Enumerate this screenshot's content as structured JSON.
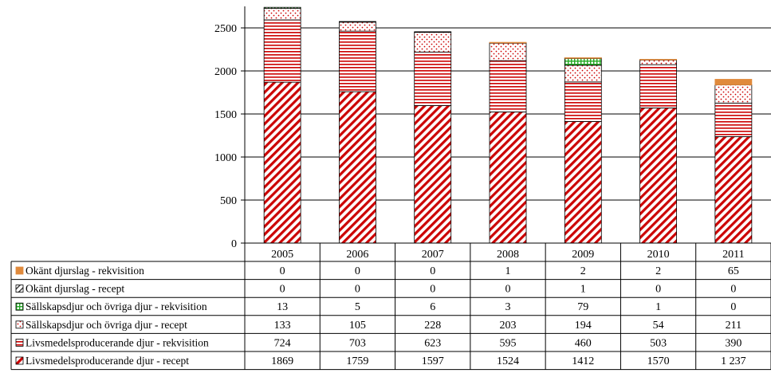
{
  "chart_data": {
    "type": "bar",
    "stacked": true,
    "title": "",
    "xlabel": "",
    "ylabel": "",
    "ylim": [
      0,
      2500
    ],
    "yticks": [
      "0",
      "500",
      "1000",
      "1500",
      "2000",
      "2500"
    ],
    "grid": "horizontal",
    "legend_placement": "data-table-left",
    "categories": [
      "2005",
      "2006",
      "2007",
      "2008",
      "2009",
      "2010",
      "2011"
    ],
    "series": [
      {
        "name": "Livsmedelsproducerande djur - recept",
        "color": "#cc0000",
        "pattern": "diagonal",
        "values": [
          1869,
          1759,
          1597,
          1524,
          1412,
          1570,
          1237
        ],
        "labels": [
          "1869",
          "1759",
          "1597",
          "1524",
          "1412",
          "1570",
          "1 237"
        ]
      },
      {
        "name": "Livsmedelsproducerande djur - rekvisition",
        "color": "#cc0000",
        "pattern": "horizontal",
        "values": [
          724,
          703,
          623,
          595,
          460,
          503,
          390
        ],
        "labels": [
          "724",
          "703",
          "623",
          "595",
          "460",
          "503",
          "390"
        ]
      },
      {
        "name": "Sällskapsdjur och övriga djur - recept",
        "color": "#cc0000",
        "pattern": "dots",
        "values": [
          133,
          105,
          228,
          203,
          194,
          54,
          211
        ],
        "labels": [
          "133",
          "105",
          "228",
          "203",
          "194",
          "54",
          "211"
        ]
      },
      {
        "name": "Sällskapsdjur och övriga djur - rekvisition",
        "color": "#22aa22",
        "pattern": "grid",
        "values": [
          13,
          5,
          6,
          3,
          79,
          1,
          0
        ],
        "labels": [
          "13",
          "5",
          "6",
          "3",
          "79",
          "1",
          "0"
        ]
      },
      {
        "name": "Okänt djurslag - recept",
        "color": "#333333",
        "pattern": "diagonal-dark",
        "values": [
          0,
          0,
          0,
          0,
          1,
          0,
          0
        ],
        "labels": [
          "0",
          "0",
          "0",
          "0",
          "1",
          "0",
          "0"
        ]
      },
      {
        "name": "Okänt djurslag - rekvisition",
        "color": "#e08a3c",
        "pattern": "solid",
        "values": [
          0,
          0,
          0,
          1,
          2,
          2,
          65
        ],
        "labels": [
          "0",
          "0",
          "0",
          "1",
          "2",
          "2",
          "65"
        ]
      }
    ]
  }
}
